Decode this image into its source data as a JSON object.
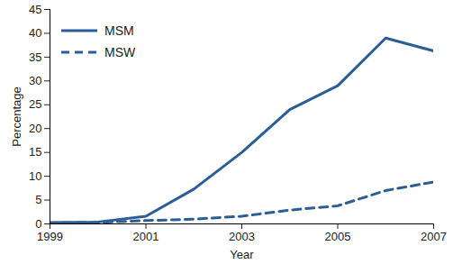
{
  "chart_data": {
    "type": "line",
    "x": [
      1999,
      2000,
      2001,
      2002,
      2003,
      2004,
      2005,
      2006,
      2007
    ],
    "series": [
      {
        "name": "MSM",
        "color": "#2b5d97",
        "line_style": "solid",
        "values": [
          0.3,
          0.4,
          1.6,
          7.3,
          15.0,
          24.0,
          29.0,
          39.0,
          36.3
        ]
      },
      {
        "name": "MSW",
        "color": "#2b5d97",
        "line_style": "dashed",
        "values": [
          0.2,
          0.3,
          0.7,
          1.0,
          1.6,
          2.9,
          3.8,
          7.0,
          8.8
        ]
      }
    ],
    "xlabel": "Year",
    "ylabel": "Percentage",
    "xlim": [
      1999,
      2007
    ],
    "xticks": [
      1999,
      2001,
      2003,
      2005,
      2007
    ],
    "ylim": [
      0,
      45
    ],
    "yticks": [
      0,
      5,
      10,
      15,
      20,
      25,
      30,
      35,
      40,
      45
    ],
    "grid": false,
    "legend": "upper left"
  }
}
